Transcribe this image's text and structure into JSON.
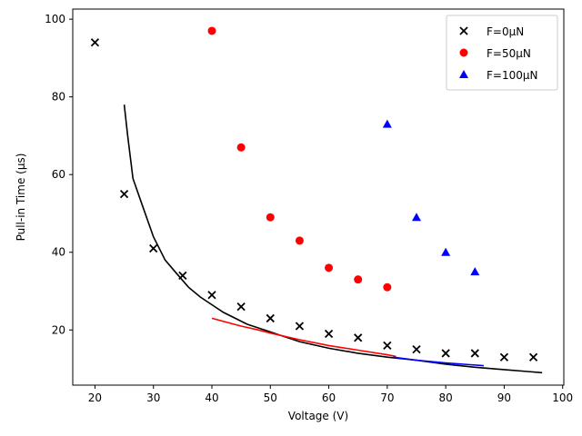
{
  "chart_data": {
    "type": "scatter",
    "title": "",
    "xlabel": "Voltage (V)",
    "ylabel": "Pull-in Time (μs)",
    "xlim": [
      16.2,
      100.2
    ],
    "ylim": [
      5.8,
      102.6
    ],
    "xticks": [
      20,
      30,
      40,
      50,
      60,
      70,
      80,
      90,
      100
    ],
    "yticks": [
      20,
      40,
      60,
      80,
      100
    ],
    "grid": false,
    "legend_position": "top-right",
    "legend": [
      {
        "label": "F=0μN",
        "marker": "x",
        "color": "#000000"
      },
      {
        "label": "F=50μN",
        "marker": "circle",
        "color": "#ff0000"
      },
      {
        "label": "F=100μN",
        "marker": "triangle",
        "color": "#0000ff"
      }
    ],
    "scatter_series": [
      {
        "name": "F=0μN",
        "marker": "x",
        "color": "#000000",
        "x": [
          20,
          25,
          30,
          35,
          40,
          45,
          50,
          55,
          60,
          65,
          70,
          75,
          80,
          85,
          90,
          95
        ],
        "y": [
          94,
          55,
          41,
          34,
          29,
          26,
          23,
          21,
          19,
          18,
          16,
          15,
          14,
          14,
          13,
          13
        ]
      },
      {
        "name": "F=50μN",
        "marker": "circle",
        "color": "#ff0000",
        "x": [
          40,
          45,
          50,
          55,
          60,
          65,
          70
        ],
        "y": [
          97,
          67,
          49,
          43,
          36,
          33,
          31
        ]
      },
      {
        "name": "F=100μN",
        "marker": "triangle",
        "color": "#0000ff",
        "x": [
          70,
          75,
          80,
          85
        ],
        "y": [
          73,
          49,
          40,
          35
        ]
      }
    ],
    "line_series": [
      {
        "color": "#000000",
        "x": [
          25,
          25.6,
          26.5,
          28,
          30,
          32,
          34,
          36,
          38,
          40,
          42,
          44,
          46,
          48,
          50,
          52,
          55,
          60,
          65,
          70,
          75,
          80,
          85,
          90,
          94,
          96.5
        ],
        "y": [
          78,
          70,
          59,
          52.5,
          44,
          38,
          34.5,
          31,
          28.5,
          26.5,
          24.5,
          23,
          21.5,
          20.5,
          19.5,
          18.5,
          17,
          15.3,
          14,
          13,
          12.2,
          11.2,
          10.4,
          9.8,
          9.3,
          9
        ]
      },
      {
        "color": "#ff0000",
        "x": [
          40,
          42,
          45,
          48,
          50,
          55,
          60,
          65,
          70,
          71.5
        ],
        "y": [
          23,
          22.2,
          21,
          20,
          19.2,
          17.5,
          16,
          14.8,
          13.6,
          13.2
        ]
      },
      {
        "color": "#0000ff",
        "x": [
          71,
          75,
          80,
          86.5
        ],
        "y": [
          13,
          12.2,
          11.5,
          10.8
        ]
      }
    ]
  }
}
